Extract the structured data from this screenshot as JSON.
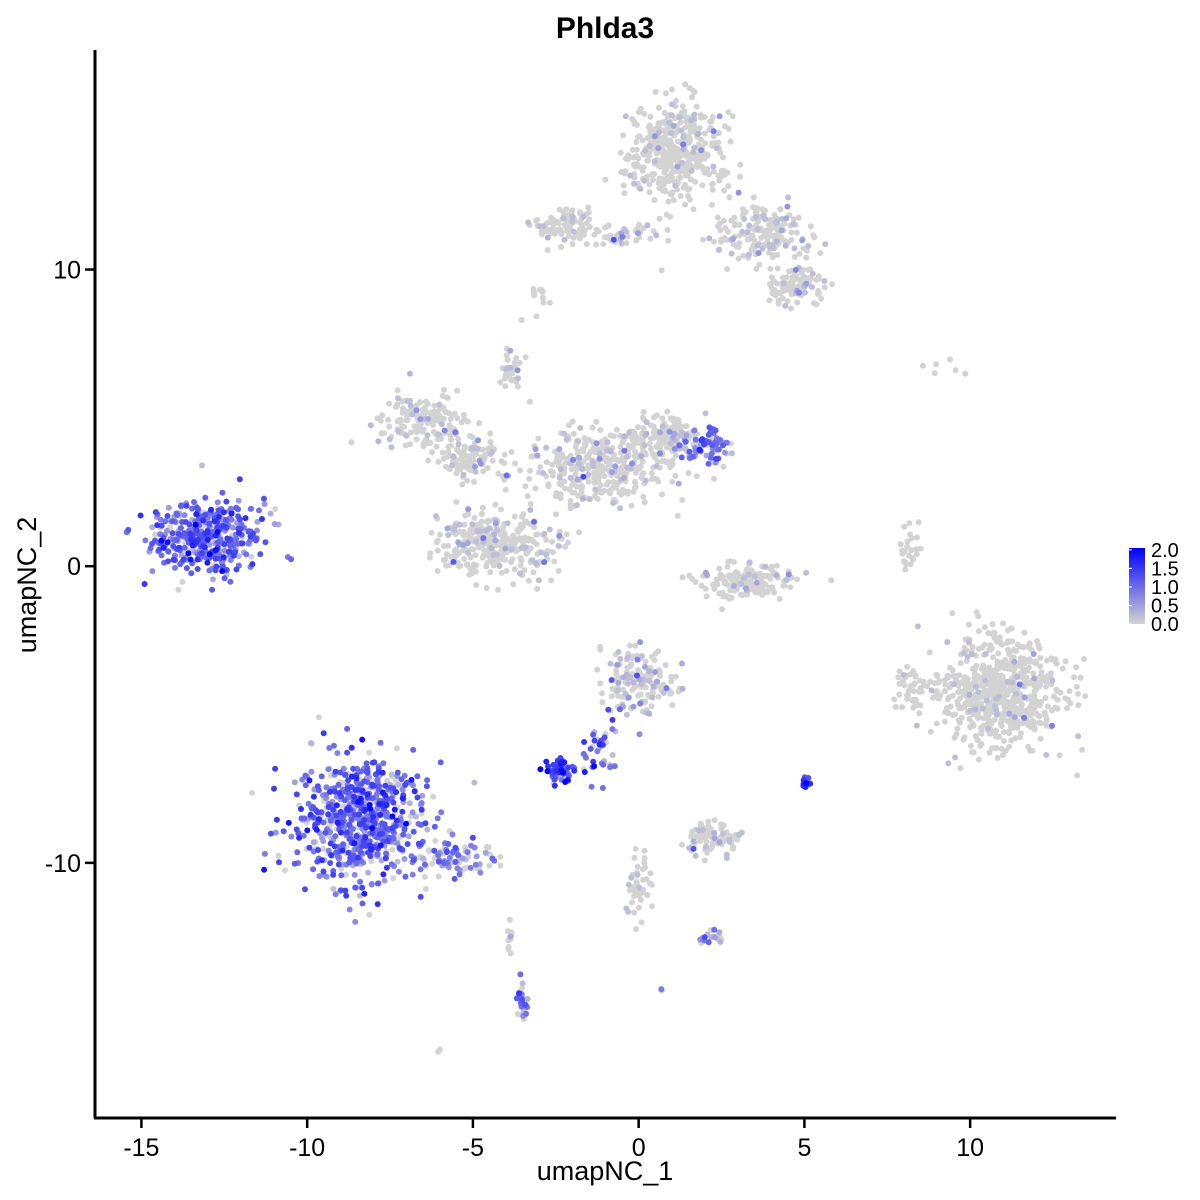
{
  "chart_data": {
    "type": "scatter",
    "title": "Phlda3",
    "xlabel": "umapNC_1",
    "ylabel": "umapNC_2",
    "xlim": [
      -16.4,
      14.4
    ],
    "ylim": [
      -18.6,
      17.4
    ],
    "x_ticks": [
      -15,
      -10,
      -5,
      0,
      5,
      10
    ],
    "x_tick_labels": [
      "-15",
      "-10",
      "-5",
      "0",
      "5",
      "10"
    ],
    "y_ticks": [
      -10,
      0,
      10
    ],
    "y_tick_labels": [
      "-10",
      "0",
      "10"
    ],
    "grid": false,
    "legend": {
      "placement": "right",
      "type": "colorbar",
      "labels": [
        "2.0",
        "1.5",
        "1.0",
        "0.5",
        "0.0"
      ],
      "values": [
        2.0,
        1.5,
        1.0,
        0.5,
        0.0
      ],
      "low_color": "#d3d3d3",
      "high_color": "#0000ff",
      "range": [
        0,
        2.05
      ]
    },
    "point_color_scale": {
      "low": "#d3d3d3",
      "high": "#0000ff"
    },
    "clusters": [
      {
        "center": [
          -13.0,
          1.0
        ],
        "spread": [
          1.2,
          0.9
        ],
        "n": 420,
        "expr_mean": 1.0
      },
      {
        "center": [
          -8.4,
          -8.6
        ],
        "spread": [
          1.4,
          1.5
        ],
        "n": 700,
        "expr_mean": 1.0
      },
      {
        "center": [
          -5.5,
          -9.8
        ],
        "spread": [
          0.9,
          0.4
        ],
        "n": 90,
        "expr_mean": 0.7
      },
      {
        "center": [
          -1.2,
          3.3
        ],
        "spread": [
          1.5,
          0.9
        ],
        "n": 360,
        "expr_mean": 0.15
      },
      {
        "center": [
          -6.5,
          4.9
        ],
        "spread": [
          1.0,
          0.6
        ],
        "n": 160,
        "expr_mean": 0.08
      },
      {
        "center": [
          -4.3,
          0.8
        ],
        "spread": [
          1.2,
          0.8
        ],
        "n": 330,
        "expr_mean": 0.12
      },
      {
        "center": [
          -5.2,
          3.6
        ],
        "spread": [
          0.7,
          0.5
        ],
        "n": 110,
        "expr_mean": 0.1
      },
      {
        "center": [
          -3.8,
          6.5
        ],
        "spread": [
          0.2,
          0.6
        ],
        "n": 35,
        "expr_mean": 0.2
      },
      {
        "center": [
          0.8,
          4.3
        ],
        "spread": [
          0.9,
          0.5
        ],
        "n": 140,
        "expr_mean": 0.1
      },
      {
        "center": [
          2.0,
          4.0
        ],
        "spread": [
          0.5,
          0.4
        ],
        "n": 70,
        "expr_mean": 0.9
      },
      {
        "center": [
          1.1,
          14.0
        ],
        "spread": [
          1.0,
          1.2
        ],
        "n": 420,
        "expr_mean": 0.05
      },
      {
        "center": [
          3.8,
          11.2
        ],
        "spread": [
          1.0,
          0.7
        ],
        "n": 180,
        "expr_mean": 0.15
      },
      {
        "center": [
          4.8,
          9.5
        ],
        "spread": [
          0.7,
          0.5
        ],
        "n": 110,
        "expr_mean": 0.05
      },
      {
        "center": [
          -2.3,
          11.5
        ],
        "spread": [
          0.6,
          0.4
        ],
        "n": 90,
        "expr_mean": 0.02
      },
      {
        "center": [
          -0.5,
          11.1
        ],
        "spread": [
          0.8,
          0.3
        ],
        "n": 45,
        "expr_mean": 0.1
      },
      {
        "center": [
          3.3,
          -0.5
        ],
        "spread": [
          1.0,
          0.4
        ],
        "n": 160,
        "expr_mean": 0.1
      },
      {
        "center": [
          0.0,
          -3.9
        ],
        "spread": [
          0.8,
          0.8
        ],
        "n": 150,
        "expr_mean": 0.3
      },
      {
        "center": [
          -1.3,
          -6.2
        ],
        "spread": [
          0.5,
          0.6
        ],
        "n": 40,
        "expr_mean": 1.0
      },
      {
        "center": [
          -2.3,
          -6.9
        ],
        "spread": [
          0.4,
          0.3
        ],
        "n": 60,
        "expr_mean": 1.4
      },
      {
        "center": [
          2.3,
          -9.2
        ],
        "spread": [
          0.6,
          0.4
        ],
        "n": 85,
        "expr_mean": 0.15
      },
      {
        "center": [
          5.0,
          -7.3
        ],
        "spread": [
          0.1,
          0.15
        ],
        "n": 12,
        "expr_mean": 1.5
      },
      {
        "center": [
          10.9,
          -4.3
        ],
        "spread": [
          1.3,
          1.3
        ],
        "n": 650,
        "expr_mean": 0.02
      },
      {
        "center": [
          8.2,
          -4.2
        ],
        "spread": [
          0.3,
          0.6
        ],
        "n": 40,
        "expr_mean": 0.02
      },
      {
        "center": [
          8.2,
          0.7
        ],
        "spread": [
          0.2,
          0.6
        ],
        "n": 25,
        "expr_mean": 0.02
      },
      {
        "center": [
          0.0,
          -10.8
        ],
        "spread": [
          0.3,
          0.8
        ],
        "n": 45,
        "expr_mean": 0.1
      },
      {
        "center": [
          2.2,
          -12.5
        ],
        "spread": [
          0.3,
          0.2
        ],
        "n": 18,
        "expr_mean": 0.6
      },
      {
        "center": [
          -3.5,
          -14.7
        ],
        "spread": [
          0.15,
          0.5
        ],
        "n": 30,
        "expr_mean": 0.9
      },
      {
        "center": [
          -3.9,
          -12.4
        ],
        "spread": [
          0.1,
          0.6
        ],
        "n": 10,
        "expr_mean": 0.1
      },
      {
        "center": [
          -3.0,
          9.1
        ],
        "spread": [
          0.2,
          0.2
        ],
        "n": 10,
        "expr_mean": 0.0
      },
      {
        "center": [
          9.2,
          6.7
        ],
        "spread": [
          0.6,
          0.2
        ],
        "n": 6,
        "expr_mean": 0.0
      },
      {
        "center": [
          -6.0,
          -16.3
        ],
        "spread": [
          0.05,
          0.05
        ],
        "n": 3,
        "expr_mean": 0.0
      },
      {
        "center": [
          0.7,
          -14.3
        ],
        "spread": [
          0.05,
          0.05
        ],
        "n": 3,
        "expr_mean": 0.5
      }
    ]
  }
}
